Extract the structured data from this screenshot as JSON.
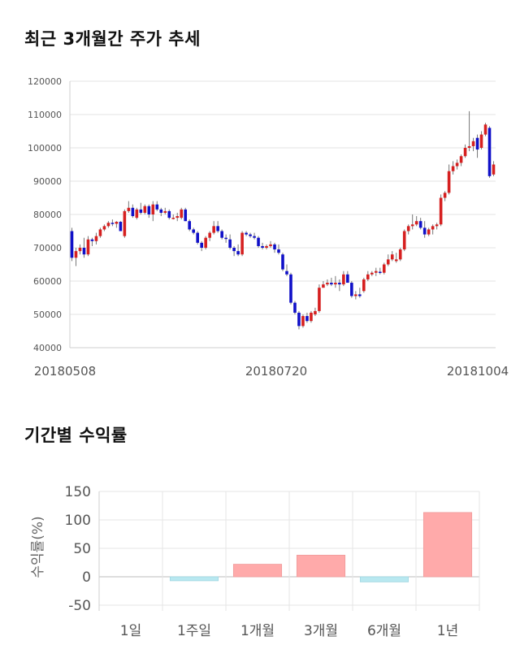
{
  "section_titles": {
    "price_trend": "최근 3개월간 주가 추세",
    "period_returns": "기간별 수익률"
  },
  "chart_data": [
    {
      "type": "candlestick",
      "title": "최근 3개월간 주가 추세",
      "ylim": [
        40000,
        120000
      ],
      "y_ticks": [
        40000,
        50000,
        60000,
        70000,
        80000,
        90000,
        100000,
        110000,
        120000
      ],
      "x_tick_labels": [
        "20180508",
        "20180720",
        "20181004"
      ],
      "grid": true,
      "up_color": "#d62020",
      "down_color": "#1010c8",
      "candles": [
        [
          75000,
          76000,
          66000,
          67000
        ],
        [
          67000,
          70000,
          64500,
          69000
        ],
        [
          69000,
          71000,
          68000,
          70000
        ],
        [
          70000,
          73000,
          67000,
          68000
        ],
        [
          68000,
          73500,
          67500,
          72500
        ],
        [
          72500,
          73000,
          70500,
          72000
        ],
        [
          72000,
          74500,
          71000,
          73500
        ],
        [
          73500,
          76000,
          73000,
          75500
        ],
        [
          75500,
          77000,
          75000,
          76500
        ],
        [
          76500,
          78000,
          76000,
          77500
        ],
        [
          77500,
          78500,
          76500,
          77200
        ],
        [
          77200,
          78000,
          76000,
          77800
        ],
        [
          77800,
          78000,
          75000,
          75000
        ],
        [
          73500,
          81500,
          73000,
          81000
        ],
        [
          81000,
          84000,
          80500,
          82000
        ],
        [
          82000,
          83000,
          79000,
          79500
        ],
        [
          79000,
          82000,
          78500,
          81500
        ],
        [
          81500,
          83500,
          80000,
          80500
        ],
        [
          80500,
          83000,
          80000,
          82500
        ],
        [
          82500,
          83000,
          79000,
          80000
        ],
        [
          80000,
          84000,
          78000,
          83000
        ],
        [
          83000,
          84000,
          81000,
          81500
        ],
        [
          81500,
          82000,
          79500,
          80500
        ],
        [
          80500,
          82000,
          80000,
          81000
        ],
        [
          81000,
          81500,
          78500,
          79000
        ],
        [
          79000,
          80000,
          78500,
          79000
        ],
        [
          79000,
          80500,
          78000,
          79500
        ],
        [
          79000,
          82000,
          78500,
          81500
        ],
        [
          81500,
          82000,
          78000,
          78000
        ],
        [
          78000,
          78500,
          75000,
          75500
        ],
        [
          75500,
          76000,
          74000,
          74500
        ],
        [
          74500,
          75000,
          71000,
          71500
        ],
        [
          71500,
          72000,
          69000,
          70000
        ],
        [
          70000,
          73500,
          69500,
          73000
        ],
        [
          73000,
          75000,
          72000,
          74500
        ],
        [
          74500,
          78000,
          74000,
          76500
        ],
        [
          76500,
          78000,
          74500,
          75000
        ],
        [
          75000,
          75500,
          72500,
          73000
        ],
        [
          73000,
          74000,
          71500,
          72800
        ],
        [
          72500,
          74000,
          69500,
          70000
        ],
        [
          70000,
          70500,
          67500,
          69000
        ],
        [
          69000,
          71000,
          67500,
          68000
        ],
        [
          68000,
          75000,
          67500,
          74500
        ],
        [
          74500,
          75000,
          73500,
          74000
        ],
        [
          74000,
          74500,
          73000,
          73500
        ],
        [
          73500,
          74500,
          72500,
          73000
        ],
        [
          73000,
          73500,
          70000,
          70500
        ],
        [
          70500,
          71500,
          69500,
          70000
        ],
        [
          70000,
          71000,
          69500,
          70500
        ],
        [
          70500,
          72000,
          70000,
          71000
        ],
        [
          71000,
          71500,
          68500,
          69500
        ],
        [
          69500,
          71000,
          68000,
          68500
        ],
        [
          68000,
          68500,
          63000,
          63500
        ],
        [
          63000,
          65000,
          61500,
          62000
        ],
        [
          62000,
          62500,
          53000,
          53500
        ],
        [
          53500,
          54000,
          50000,
          50500
        ],
        [
          50500,
          51000,
          45500,
          46500
        ],
        [
          46500,
          50000,
          46000,
          49500
        ],
        [
          49500,
          50500,
          47500,
          48000
        ],
        [
          48000,
          51000,
          47500,
          50500
        ],
        [
          50000,
          52000,
          49500,
          51000
        ],
        [
          51000,
          59000,
          50500,
          58000
        ],
        [
          58000,
          60000,
          58000,
          59000
        ],
        [
          59000,
          60500,
          58500,
          59500
        ],
        [
          59500,
          61000,
          58500,
          59000
        ],
        [
          59000,
          61500,
          58000,
          59500
        ],
        [
          59500,
          60500,
          57000,
          59000
        ],
        [
          59000,
          63000,
          58500,
          62000
        ],
        [
          62000,
          63000,
          59500,
          59500
        ],
        [
          59500,
          60000,
          55000,
          55500
        ],
        [
          55500,
          57000,
          54500,
          56000
        ],
        [
          56000,
          58000,
          55000,
          55500
        ],
        [
          57000,
          61000,
          56500,
          60500
        ],
        [
          60500,
          63000,
          60000,
          62000
        ],
        [
          62000,
          63000,
          61500,
          62500
        ],
        [
          62500,
          64000,
          61500,
          63000
        ],
        [
          62800,
          64000,
          62000,
          62500
        ],
        [
          62500,
          65500,
          62000,
          65000
        ],
        [
          65000,
          68000,
          64500,
          66500
        ],
        [
          66500,
          69000,
          66000,
          68000
        ],
        [
          66000,
          68500,
          65500,
          66500
        ],
        [
          66500,
          70000,
          66000,
          69500
        ],
        [
          69500,
          75500,
          69000,
          75000
        ],
        [
          75000,
          77000,
          74000,
          76500
        ],
        [
          76500,
          80000,
          75500,
          77000
        ],
        [
          77000,
          79500,
          76500,
          78000
        ],
        [
          78000,
          79000,
          75500,
          76000
        ],
        [
          76000,
          78000,
          73000,
          74000
        ],
        [
          74000,
          76000,
          73500,
          75500
        ],
        [
          75500,
          77000,
          74000,
          76500
        ],
        [
          76500,
          77500,
          75500,
          77000
        ],
        [
          77000,
          86000,
          76500,
          85000
        ],
        [
          85000,
          87000,
          84000,
          86500
        ],
        [
          86500,
          95000,
          86000,
          93000
        ],
        [
          93000,
          96000,
          92000,
          94500
        ],
        [
          94500,
          96500,
          93500,
          95500
        ],
        [
          95500,
          98000,
          94500,
          97500
        ],
        [
          97500,
          101000,
          97000,
          100000
        ],
        [
          100000,
          111000,
          99000,
          100500
        ],
        [
          100500,
          103000,
          99000,
          102000
        ],
        [
          103000,
          104000,
          97000,
          99500
        ],
        [
          100000,
          105000,
          99500,
          104000
        ],
        [
          104000,
          107500,
          103500,
          107000
        ],
        [
          106000,
          106500,
          91000,
          91500
        ],
        [
          92000,
          96000,
          91500,
          95000
        ]
      ]
    },
    {
      "type": "bar",
      "title": "기간별 수익률",
      "categories": [
        "1일",
        "1주일",
        "1개월",
        "3개월",
        "6개월",
        "1년"
      ],
      "values": [
        0,
        -7,
        22,
        38,
        -9,
        113
      ],
      "ylabel": "수익률(%)",
      "ylim": [
        -60,
        150
      ],
      "y_ticks": [
        150,
        100,
        50,
        0,
        -50
      ],
      "grid": true,
      "positive_color": "#ffaaaa",
      "negative_color": "#b8e8f0"
    }
  ]
}
